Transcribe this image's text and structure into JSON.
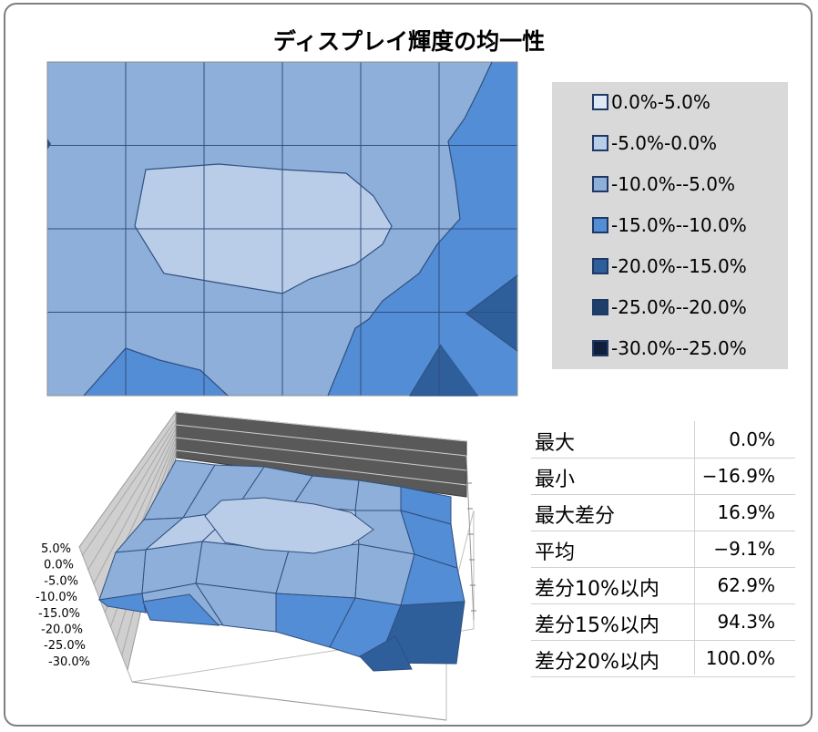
{
  "title": "ディスプレイ輝度の均一性",
  "legend": [
    {
      "label": "0.0%-5.0%",
      "color": "#dfe8f5"
    },
    {
      "label": "-5.0%-0.0%",
      "color": "#b9cde8"
    },
    {
      "label": "-10.0%--5.0%",
      "color": "#8eafda"
    },
    {
      "label": "-15.0%--10.0%",
      "color": "#538dd5"
    },
    {
      "label": "-20.0%--15.0%",
      "color": "#2f5f9a"
    },
    {
      "label": "-25.0%--20.0%",
      "color": "#1f3f6a"
    },
    {
      "label": "-30.0%--25.0%",
      "color": "#0f1f3a"
    }
  ],
  "stats": [
    {
      "label": "最大",
      "value": "0.0%"
    },
    {
      "label": "最小",
      "value": "−16.9%"
    },
    {
      "label": "最大差分",
      "value": "16.9%"
    },
    {
      "label": "平均",
      "value": "−9.1%"
    },
    {
      "label": "差分10%以内",
      "value": "62.9%"
    },
    {
      "label": "差分15%以内",
      "value": "94.3%"
    },
    {
      "label": "差分20%以内",
      "value": "100.0%"
    }
  ],
  "chart_data": [
    {
      "type": "heatmap",
      "subtype": "contour",
      "title": "",
      "grid_columns": 6,
      "grid_rows": 4,
      "bands": [
        "0.0%-5.0%",
        "-5.0%-0.0%",
        "-10.0%--5.0%",
        "-15.0%--10.0%",
        "-20.0%--15.0%",
        "-25.0%--20.0%",
        "-30.0%--25.0%"
      ]
    },
    {
      "type": "surface3d",
      "title": "",
      "zlim": [
        -30.0,
        5.0
      ],
      "z_tick_labels": [
        "5.0%",
        "0.0%",
        "-5.0%",
        "-10.0%",
        "-15.0%",
        "-20.0%",
        "-25.0%",
        "-30.0%"
      ]
    }
  ]
}
